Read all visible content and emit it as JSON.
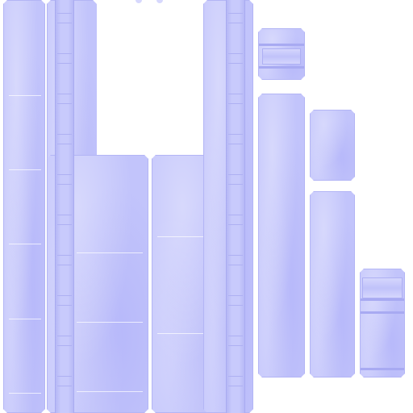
{
  "texture": {
    "base_color": "#c2c4fb",
    "edge_color": "#b3b5f5",
    "rail_color": "#b6b8f6",
    "background_color": "#ffffff"
  }
}
